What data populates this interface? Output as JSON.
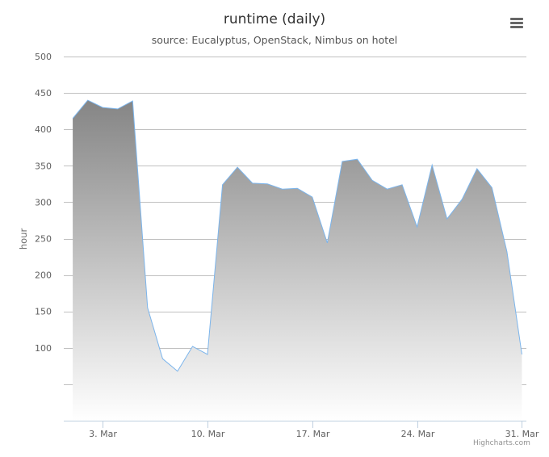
{
  "chart_data": {
    "type": "area",
    "title": "runtime (daily)",
    "subtitle": "source: Eucalyptus, OpenStack, Nimbus on hotel",
    "ylabel": "hour",
    "xlabel": "",
    "ylim": [
      0,
      500
    ],
    "yticks": [
      "500",
      "450",
      "400",
      "350",
      "300",
      "250",
      "200",
      "150",
      "100"
    ],
    "ytick_values": [
      500,
      450,
      400,
      350,
      300,
      250,
      200,
      150,
      100
    ],
    "xlim": [
      "2014-02-29",
      "2014-03-31"
    ],
    "xticks": [
      {
        "label": "3. Mar",
        "date": "2014-03-03"
      },
      {
        "label": "10. Mar",
        "date": "2014-03-10"
      },
      {
        "label": "17. Mar",
        "date": "2014-03-17"
      },
      {
        "label": "24. Mar",
        "date": "2014-03-24"
      },
      {
        "label": "31. Mar",
        "date": "2014-03-31"
      }
    ],
    "grid": true,
    "legend": "none",
    "series": [
      {
        "dates": [
          "2014-03-01",
          "2014-03-02",
          "2014-03-03",
          "2014-03-04",
          "2014-03-05",
          "2014-03-06",
          "2014-03-07",
          "2014-03-08",
          "2014-03-09",
          "2014-03-10",
          "2014-03-11",
          "2014-03-12",
          "2014-03-13",
          "2014-03-14",
          "2014-03-15",
          "2014-03-16",
          "2014-03-17",
          "2014-03-18",
          "2014-03-19",
          "2014-03-20",
          "2014-03-21",
          "2014-03-22",
          "2014-03-23",
          "2014-03-24",
          "2014-03-25",
          "2014-03-26",
          "2014-03-27",
          "2014-03-28",
          "2014-03-29",
          "2014-03-30",
          "2014-03-31"
        ],
        "values": [
          415,
          440,
          430,
          428,
          439,
          155,
          85,
          68,
          102,
          91,
          324,
          348,
          326,
          325,
          318,
          319,
          307,
          244,
          356,
          359,
          330,
          318,
          324,
          266,
          351,
          277,
          304,
          346,
          320,
          232,
          91
        ]
      }
    ],
    "colors": {
      "line": "#7cb5ec",
      "fill_top": "#858585",
      "fill_bottom": "#ffffff",
      "grid": "#c0c0c0"
    }
  },
  "credits": "Highcharts.com"
}
